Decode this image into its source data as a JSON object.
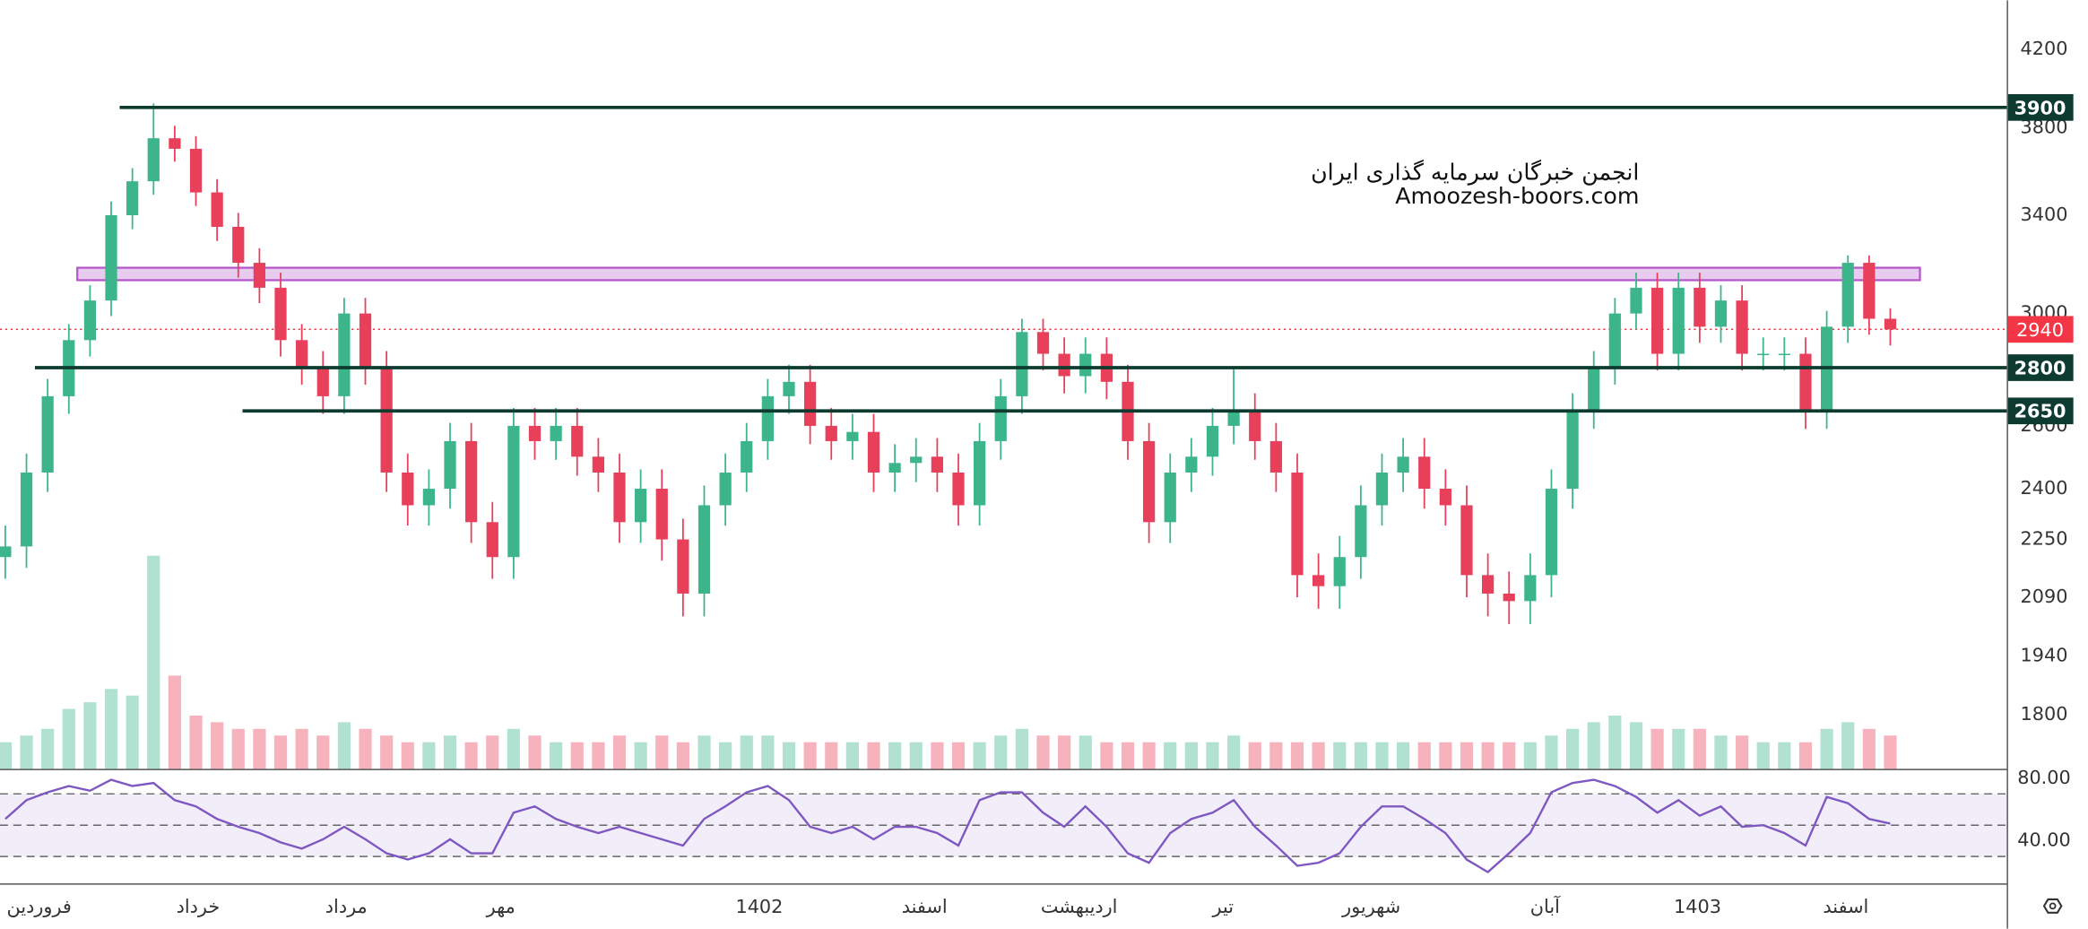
{
  "chart_data": [
    {
      "type": "candlestick",
      "log_scale": true,
      "open": [
        2200,
        2230,
        2450,
        2700,
        2900,
        3050,
        3400,
        3550,
        3750,
        3700,
        3500,
        3350,
        3200,
        3100,
        2900,
        2800,
        2700,
        3000,
        2800,
        2450,
        2350,
        2400,
        2550,
        2300,
        2200,
        2600,
        2550,
        2600,
        2500,
        2450,
        2300,
        2400,
        2250,
        2100,
        2350,
        2450,
        2550,
        2700,
        2750,
        2600,
        2550,
        2580,
        2450,
        2480,
        2500,
        2450,
        2350,
        2550,
        2700,
        2930,
        2850,
        2770,
        2850,
        2750,
        2550,
        2300,
        2450,
        2500,
        2600,
        2650,
        2550,
        2450,
        2150,
        2120,
        2200,
        2350,
        2450,
        2500,
        2400,
        2350,
        2150,
        2100,
        2080,
        2150,
        2400,
        2650,
        2800,
        3000,
        3100,
        2850,
        3100,
        2950,
        3050,
        2850,
        2850,
        2850,
        2650,
        2950,
        3200,
        2980
      ],
      "high": [
        2290,
        2510,
        2760,
        2960,
        3110,
        3460,
        3610,
        3920,
        3810,
        3760,
        3560,
        3410,
        3260,
        3160,
        2960,
        2860,
        3060,
        3060,
        2860,
        2510,
        2460,
        2610,
        2610,
        2360,
        2660,
        2660,
        2660,
        2660,
        2560,
        2510,
        2460,
        2460,
        2310,
        2410,
        2510,
        2610,
        2760,
        2810,
        2810,
        2660,
        2640,
        2640,
        2540,
        2560,
        2560,
        2510,
        2610,
        2760,
        2980,
        2980,
        2910,
        2910,
        2910,
        2810,
        2610,
        2510,
        2560,
        2660,
        2800,
        2710,
        2610,
        2510,
        2210,
        2260,
        2410,
        2510,
        2560,
        2560,
        2460,
        2410,
        2210,
        2160,
        2210,
        2460,
        2710,
        2860,
        3060,
        3160,
        3160,
        3160,
        3160,
        3110,
        3110,
        2910,
        2910,
        2910,
        3010,
        3230,
        3230,
        3020
      ],
      "low": [
        2140,
        2170,
        2390,
        2640,
        2840,
        2990,
        3340,
        3490,
        3640,
        3440,
        3290,
        3140,
        3040,
        2840,
        2740,
        2640,
        2640,
        2740,
        2390,
        2290,
        2290,
        2340,
        2240,
        2140,
        2140,
        2490,
        2490,
        2440,
        2390,
        2240,
        2240,
        2190,
        2040,
        2040,
        2290,
        2390,
        2490,
        2640,
        2540,
        2490,
        2490,
        2390,
        2390,
        2420,
        2390,
        2290,
        2290,
        2490,
        2640,
        2790,
        2710,
        2710,
        2690,
        2490,
        2240,
        2240,
        2390,
        2440,
        2540,
        2490,
        2390,
        2090,
        2060,
        2060,
        2140,
        2290,
        2390,
        2340,
        2290,
        2090,
        2040,
        2020,
        2020,
        2090,
        2340,
        2590,
        2740,
        2940,
        2790,
        2790,
        2890,
        2890,
        2790,
        2790,
        2790,
        2590,
        2590,
        2890,
        2920,
        2880
      ],
      "close": [
        2230,
        2450,
        2700,
        2900,
        3050,
        3400,
        3550,
        3750,
        3700,
        3500,
        3350,
        3200,
        3100,
        2900,
        2800,
        2700,
        3000,
        2800,
        2450,
        2350,
        2400,
        2550,
        2300,
        2200,
        2600,
        2550,
        2600,
        2500,
        2450,
        2300,
        2400,
        2250,
        2100,
        2350,
        2450,
        2550,
        2700,
        2750,
        2600,
        2550,
        2580,
        2450,
        2480,
        2500,
        2450,
        2350,
        2550,
        2700,
        2930,
        2850,
        2770,
        2850,
        2750,
        2550,
        2300,
        2450,
        2500,
        2600,
        2650,
        2550,
        2450,
        2150,
        2120,
        2200,
        2350,
        2450,
        2500,
        2400,
        2350,
        2150,
        2100,
        2080,
        2150,
        2400,
        2650,
        2800,
        3000,
        3100,
        2850,
        3100,
        2950,
        3050,
        2850,
        2850,
        2850,
        2650,
        2950,
        3200,
        2980,
        2940
      ],
      "volume": [
        20,
        25,
        30,
        45,
        50,
        60,
        55,
        160,
        70,
        40,
        35,
        30,
        30,
        25,
        30,
        25,
        35,
        30,
        25,
        20,
        20,
        25,
        20,
        25,
        30,
        25,
        20,
        20,
        20,
        25,
        20,
        25,
        20,
        25,
        20,
        25,
        25,
        20,
        20,
        20,
        20,
        20,
        20,
        20,
        20,
        20,
        20,
        25,
        30,
        25,
        25,
        25,
        20,
        20,
        20,
        20,
        20,
        20,
        25,
        20,
        20,
        20,
        20,
        20,
        20,
        20,
        20,
        20,
        20,
        20,
        20,
        20,
        20,
        25,
        30,
        35,
        40,
        35,
        30,
        30,
        30,
        25,
        25,
        20,
        20,
        20,
        30,
        35,
        30,
        25
      ],
      "volume_ylim": [
        0,
        200
      ],
      "up_color": "#3cb58a",
      "down_color": "#e8405a",
      "ylim": [
        1680,
        4470
      ],
      "yticks": [
        4200,
        3800,
        3400,
        3000,
        2600,
        2400,
        2250,
        2090,
        1940,
        1800
      ],
      "xlim": [
        -0.25,
        94.5
      ],
      "xticks": [
        {
          "value": 1.6,
          "label": "فروردین"
        },
        {
          "value": 9.1,
          "label": "خرداد"
        },
        {
          "value": 16.1,
          "label": "مرداد"
        },
        {
          "value": 23.4,
          "label": "مهر"
        },
        {
          "value": 35.6,
          "label": "1402"
        },
        {
          "value": 43.4,
          "label": "اسفند"
        },
        {
          "value": 50.7,
          "label": "اردیبهشت"
        },
        {
          "value": 57.5,
          "label": "تیر"
        },
        {
          "value": 64.5,
          "label": "شهریور"
        },
        {
          "value": 72.7,
          "label": "آبان"
        },
        {
          "value": 79.9,
          "label": "1403"
        },
        {
          "value": 86.9,
          "label": "اسفند"
        }
      ],
      "levels": [
        {
          "value": 3900,
          "x_start": 5.4,
          "color": "#0d3b2f"
        },
        {
          "value": 2800,
          "x_start": 1.4,
          "color": "#0d3b2f"
        },
        {
          "value": 2650,
          "x_start": 11.2,
          "color": "#0d3b2f"
        }
      ],
      "zone": {
        "low": 3130,
        "high": 3180,
        "x_start": 3.4,
        "x_end": 90.4,
        "color": "#b455c9"
      },
      "last_price": {
        "value": 2940,
        "color": "#f23645"
      },
      "watermark": [
        "انجمن خبرگان سرمایه گذاری ایران",
        "Amoozesh-boors.com"
      ]
    },
    {
      "type": "line",
      "values": [
        54,
        66,
        71,
        75,
        72,
        79,
        75,
        77,
        66,
        62,
        54,
        49,
        45,
        39,
        35,
        41,
        49,
        41,
        32,
        28,
        32,
        41,
        32,
        32,
        58,
        62,
        54,
        49,
        45,
        49,
        45,
        41,
        37,
        54,
        62,
        71,
        75,
        66,
        49,
        45,
        49,
        41,
        49,
        49,
        45,
        37,
        66,
        71,
        71,
        58,
        49,
        62,
        49,
        32,
        26,
        45,
        54,
        58,
        66,
        49,
        37,
        24,
        26,
        32,
        49,
        62,
        62,
        54,
        45,
        28,
        20,
        32,
        45,
        71,
        77,
        79,
        75,
        68,
        58,
        66,
        56,
        62,
        49,
        50,
        45,
        37,
        68,
        64,
        54,
        51
      ],
      "color": "#7e57c2",
      "ylim": [
        12.8,
        86
      ],
      "yticks": [
        {
          "value": 80,
          "label": "80.00"
        },
        {
          "value": 40,
          "label": "40.00"
        }
      ],
      "levels": [
        30,
        50,
        70
      ]
    }
  ]
}
